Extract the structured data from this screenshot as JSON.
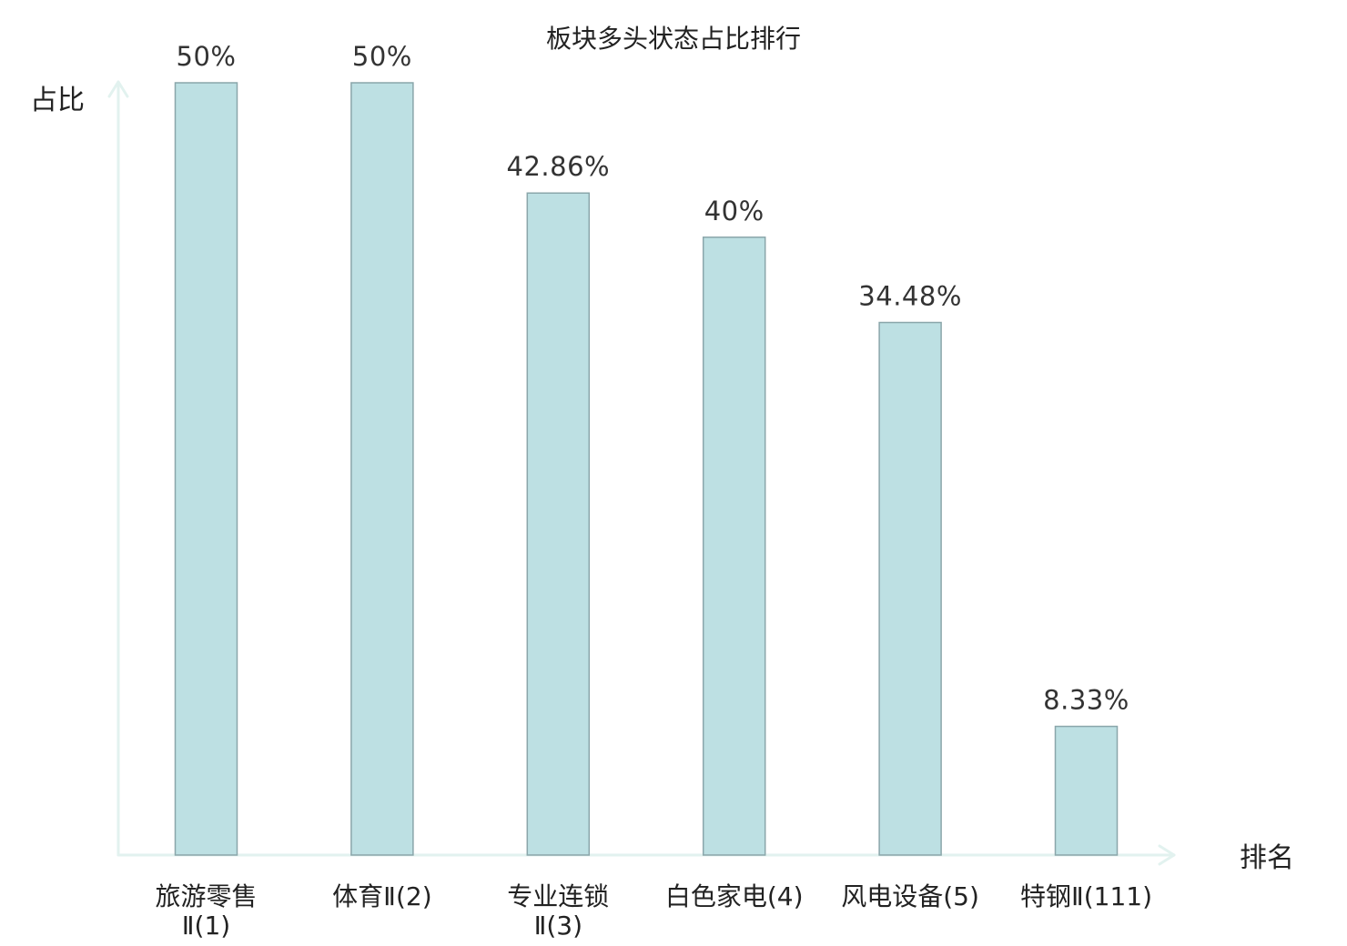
{
  "chart_data": {
    "type": "bar",
    "title": "板块多头状态占比排行",
    "xlabel": "排名",
    "ylabel": "占比",
    "categories": [
      [
        "旅游零售",
        "Ⅱ(1)"
      ],
      [
        "体育Ⅱ(2)"
      ],
      [
        "专业连锁",
        "Ⅱ(3)"
      ],
      [
        "白色家电(4)"
      ],
      [
        "风电设备(5)"
      ],
      [
        "特钢Ⅱ(111)"
      ]
    ],
    "values": [
      50,
      50,
      42.86,
      40,
      34.48,
      8.33
    ],
    "value_labels": [
      "50%",
      "50%",
      "42.86%",
      "40%",
      "34.48%",
      "8.33%"
    ],
    "highlight_index": 5,
    "ylim": [
      0,
      50
    ],
    "grid": false,
    "colors": {
      "bar_fill": "#bde0e3",
      "bar_stroke": "#8aa6aa",
      "axis": "#e2f2ef",
      "highlight_label": "#e0191a",
      "label": "#222222"
    }
  }
}
